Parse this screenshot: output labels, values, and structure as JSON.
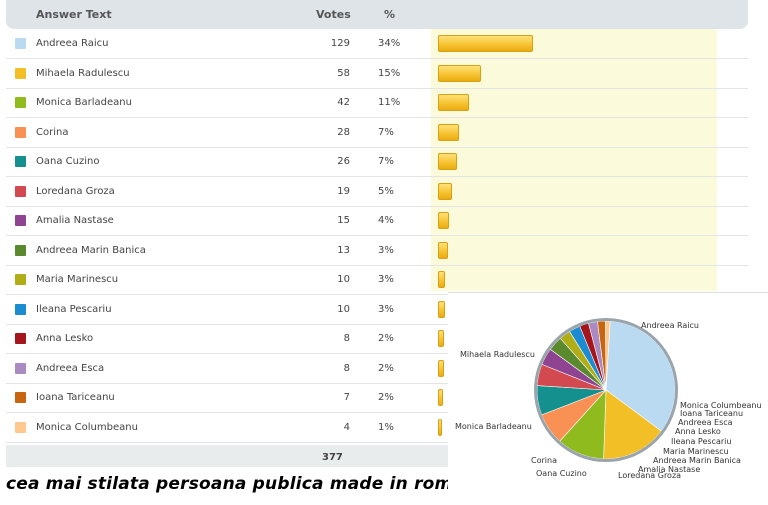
{
  "header": {
    "answer_label": "Answer Text",
    "votes_label": "Votes",
    "percent_label": "%"
  },
  "total_votes": "377",
  "caption": "cea mai stilata persoana publica made in romania",
  "chart_data": {
    "type": "table",
    "columns": [
      "Answer Text",
      "Votes",
      "%"
    ],
    "rows": [
      {
        "label": "Andreea Raicu",
        "votes": 129,
        "percent": "34%",
        "color": "#b9daf1"
      },
      {
        "label": "Mihaela Radulescu",
        "votes": 58,
        "percent": "15%",
        "color": "#f2bf27"
      },
      {
        "label": "Monica Barladeanu",
        "votes": 42,
        "percent": "11%",
        "color": "#8fbb1f"
      },
      {
        "label": "Corina",
        "votes": 28,
        "percent": "7%",
        "color": "#f99155"
      },
      {
        "label": "Oana Cuzino",
        "votes": 26,
        "percent": "7%",
        "color": "#14908e"
      },
      {
        "label": "Loredana Groza",
        "votes": 19,
        "percent": "5%",
        "color": "#d2494f"
      },
      {
        "label": "Amalia Nastase",
        "votes": 15,
        "percent": "4%",
        "color": "#8e4491"
      },
      {
        "label": "Andreea Marin Banica",
        "votes": 13,
        "percent": "3%",
        "color": "#5b8a2e"
      },
      {
        "label": "Maria Marinescu",
        "votes": 10,
        "percent": "3%",
        "color": "#b0ad16"
      },
      {
        "label": "Ileana Pescariu",
        "votes": 10,
        "percent": "3%",
        "color": "#1b8cd1"
      },
      {
        "label": "Anna Lesko",
        "votes": 8,
        "percent": "2%",
        "color": "#a4161b"
      },
      {
        "label": "Andreea Esca",
        "votes": 8,
        "percent": "2%",
        "color": "#a98ac1"
      },
      {
        "label": "Ioana Tariceanu",
        "votes": 7,
        "percent": "2%",
        "color": "#c8650f"
      },
      {
        "label": "Monica Columbeanu",
        "votes": 4,
        "percent": "1%",
        "color": "#ffc88f"
      }
    ],
    "total": 377
  }
}
